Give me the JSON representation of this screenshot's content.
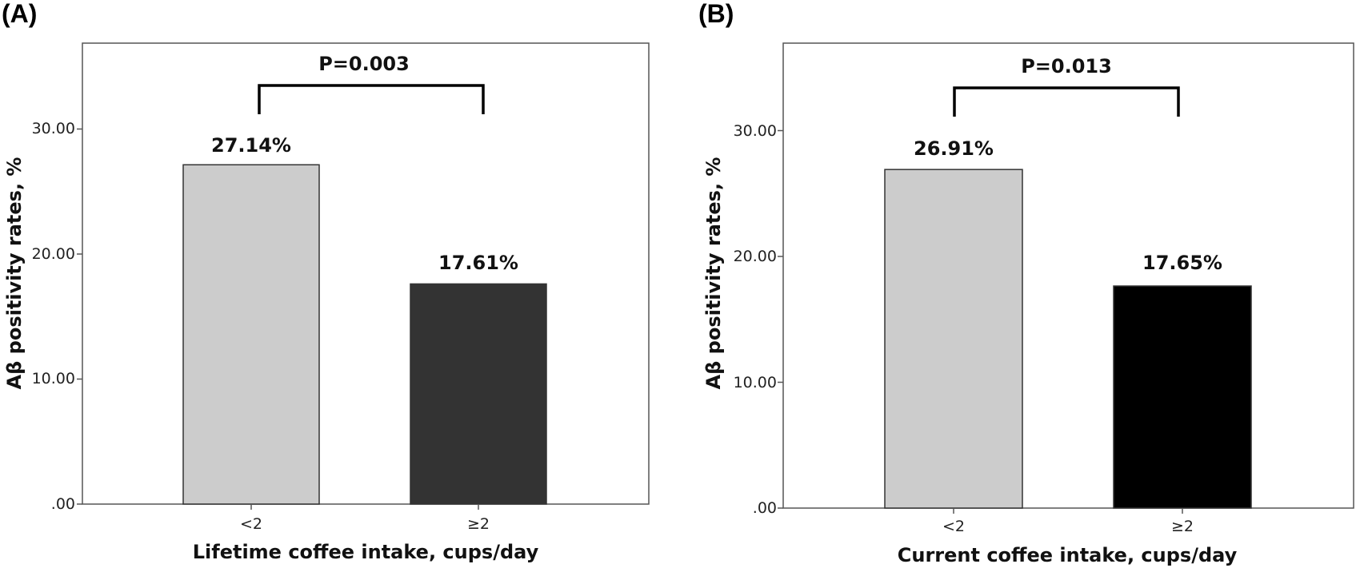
{
  "chart_data": [
    {
      "panel_label": "(A)",
      "type": "bar",
      "categories": [
        "<2",
        "≥2"
      ],
      "values": [
        27.14,
        17.61
      ],
      "value_labels": [
        "27.14%",
        "17.61%"
      ],
      "colors": [
        "#cccccc",
        "#333333"
      ],
      "xlabel": "Lifetime coffee intake, cups/day",
      "ylabel": "Aβ positivity rates, %",
      "ylim": [
        0,
        37
      ],
      "yticks": [
        0,
        10,
        20,
        30
      ],
      "ytick_labels": [
        ".00",
        "10.00",
        "20.00",
        "30.00"
      ],
      "annotation": "P=0.003",
      "grid": false
    },
    {
      "panel_label": "(B)",
      "type": "bar",
      "categories": [
        "<2",
        "≥2"
      ],
      "values": [
        26.91,
        17.65
      ],
      "value_labels": [
        "26.91%",
        "17.65%"
      ],
      "colors": [
        "#cccccc",
        "#000000"
      ],
      "xlabel": "Current coffee intake, cups/day",
      "ylabel": "Aβ positivity rates, %",
      "ylim": [
        0,
        37
      ],
      "yticks": [
        0,
        10,
        20,
        30
      ],
      "ytick_labels": [
        ".00",
        "10.00",
        "20.00",
        "30.00"
      ],
      "annotation": "P=0.013",
      "grid": false
    }
  ]
}
